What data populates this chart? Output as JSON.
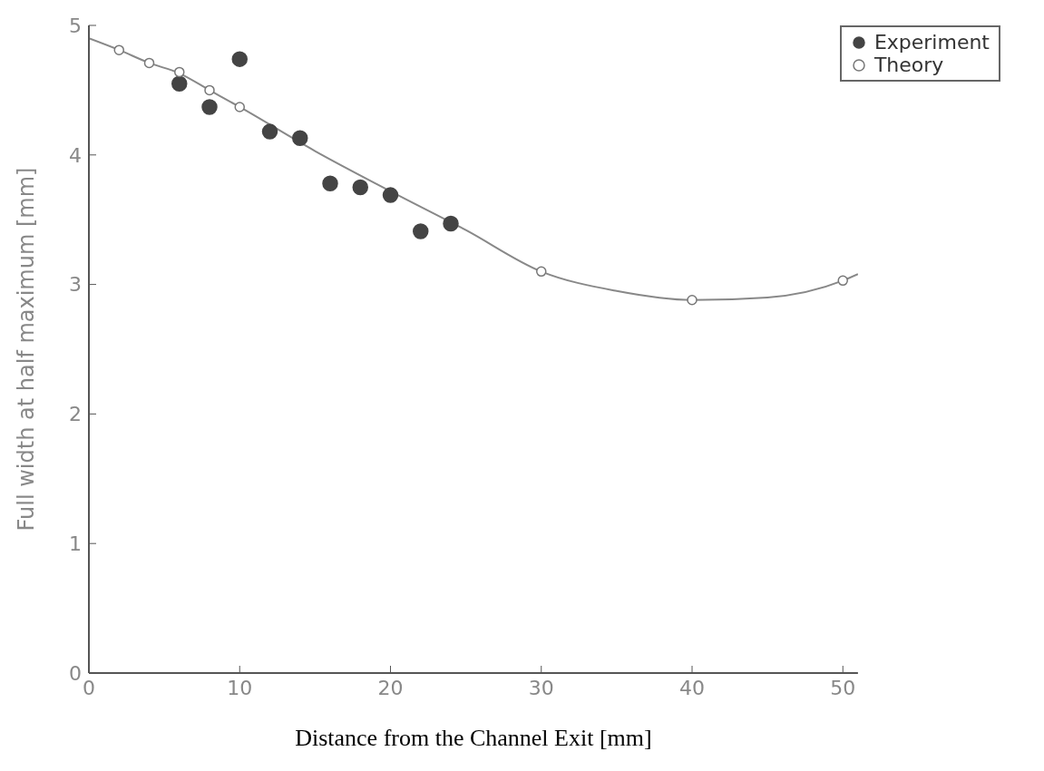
{
  "chart_data": {
    "type": "scatter",
    "xlabel": "Distance from the Channel Exit [mm]",
    "ylabel": "Full width at half maximum [mm]",
    "xlim": [
      0,
      51
    ],
    "xticks": [
      0,
      10,
      20,
      30,
      40,
      50
    ],
    "ylim": [
      0,
      5
    ],
    "yticks": [
      0,
      1,
      2,
      3,
      4,
      5
    ],
    "grid": false,
    "legend": "top right",
    "marker": "circle",
    "series": [
      {
        "name": "Experiment",
        "color": "#444444",
        "x": [
          6,
          8,
          10,
          12,
          14,
          16,
          18,
          20,
          22,
          24
        ],
        "values": [
          4.55,
          4.37,
          4.74,
          4.18,
          4.13,
          3.78,
          3.75,
          3.69,
          3.41,
          3.47
        ]
      },
      {
        "name": "Theory",
        "color": "#777777",
        "x": [
          2,
          4,
          6,
          8,
          10,
          30,
          40,
          50
        ],
        "values": [
          4.81,
          4.71,
          4.64,
          4.5,
          4.37,
          3.1,
          2.88,
          3.03
        ]
      },
      {
        "type": "line",
        "color": "#888888",
        "line_style": "solid",
        "marker": "none",
        "x": [
          0,
          2,
          4,
          6,
          8,
          10,
          15,
          20,
          25,
          30,
          35,
          40,
          45,
          50,
          51
        ],
        "values": [
          4.9,
          4.81,
          4.71,
          4.63,
          4.5,
          4.37,
          4.03,
          3.72,
          3.42,
          3.1,
          2.95,
          2.88,
          2.9,
          3.03,
          3.08
        ]
      }
    ]
  }
}
